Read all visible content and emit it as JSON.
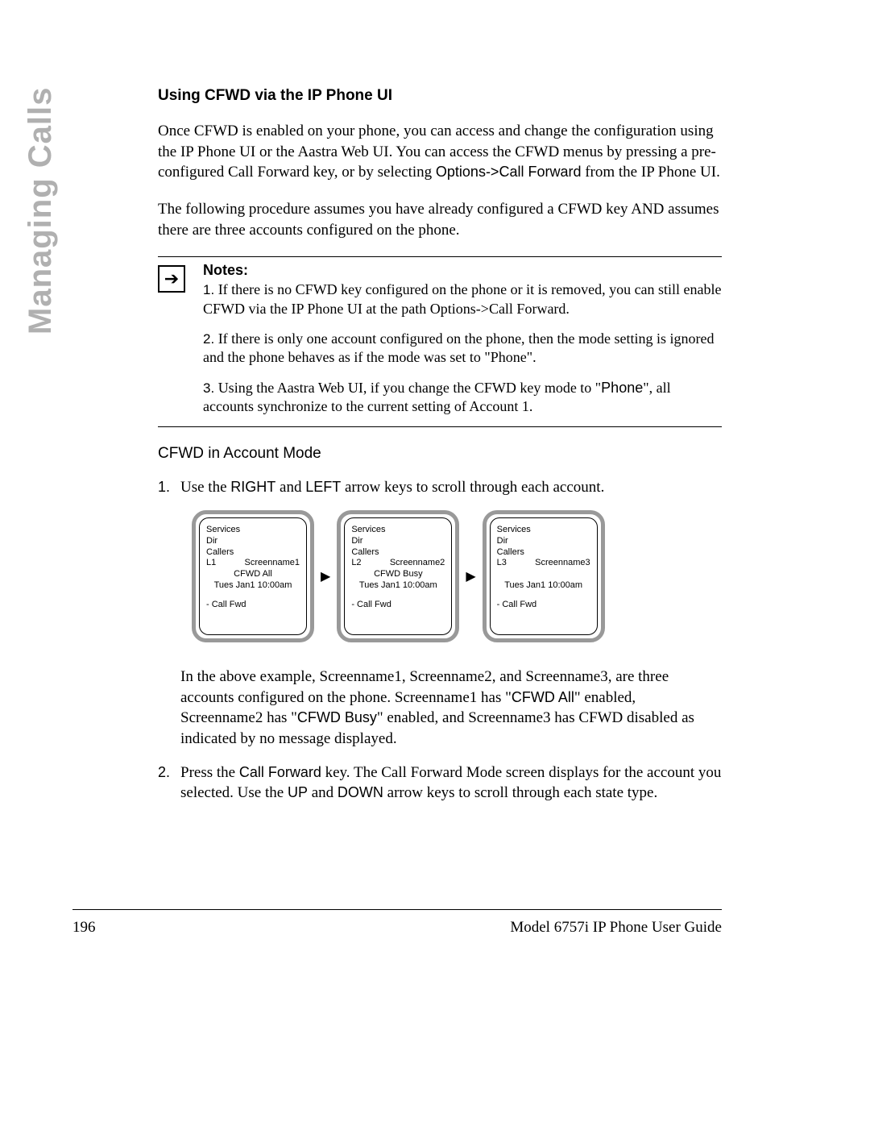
{
  "sideTab": "Managing Calls",
  "heading": "Using CFWD via the IP Phone UI",
  "para1_a": "Once CFWD is enabled on your phone, you can access and change the configuration using the IP Phone UI or the Aastra Web UI. You can access the CFWD menus by pressing a pre-configured Call Forward key, or by selecting ",
  "para1_b": "Options->Call Forward",
  "para1_c": " from the IP Phone UI.",
  "para2": "The following procedure assumes you have already configured a CFWD key AND assumes there are three accounts configured on the phone.",
  "notesTitle": "Notes:",
  "note1_num": "1.",
  "note1": " If there is no CFWD key configured on the phone or it is removed, you can still enable CFWD via the IP Phone UI at the path Options->Call Forward.",
  "note2_num": "2.",
  "note2": " If there is only one account configured on the phone, then the mode setting is ignored and the phone behaves as if the mode was set to \"Phone\".",
  "note3_num": "3.",
  "note3_a": " Using the Aastra Web UI, if you change the CFWD key mode to \"",
  "note3_b": "Phone",
  "note3_c": "\", all accounts synchronize to the current setting of Account 1.",
  "subhead": "CFWD in Account Mode",
  "step1_num": "1.",
  "step1_a": "Use the ",
  "step1_b": "RIGHT",
  "step1_c": " and ",
  "step1_d": "LEFT",
  "step1_e": " arrow keys to scroll through each account.",
  "screens": [
    {
      "services": "Services",
      "dir": "Dir",
      "callers": "Callers",
      "line": "L1",
      "screenname": "Screenname1",
      "cfwd": "CFWD All",
      "time": "Tues Jan1 10:00am",
      "callfwd": "- Call Fwd"
    },
    {
      "services": "Services",
      "dir": "Dir",
      "callers": "Callers",
      "line": "L2",
      "screenname": "Screenname2",
      "cfwd": "CFWD Busy",
      "time": "Tues Jan1 10:00am",
      "callfwd": "- Call Fwd"
    },
    {
      "services": "Services",
      "dir": "Dir",
      "callers": "Callers",
      "line": "L3",
      "screenname": "Screenname3",
      "cfwd": "",
      "time": "Tues Jan1 10:00am",
      "callfwd": "- Call Fwd"
    }
  ],
  "arrow": "▶",
  "afterScreens_a": "In the above example, Screenname1, Screenname2, and Screenname3, are three accounts configured on the phone. Screenname1 has \"",
  "afterScreens_b": "CFWD All",
  "afterScreens_c": "\" enabled, Screenname2 has \"",
  "afterScreens_d": "CFWD Busy",
  "afterScreens_e": "\" enabled, and Screenname3 has CFWD disabled as indicated by no message displayed.",
  "step2_num": "2.",
  "step2_a": "Press the ",
  "step2_b": "Call Forward",
  "step2_c": " key. The Call Forward Mode screen displays for the account you selected. Use the ",
  "step2_d": "UP",
  "step2_e": " and ",
  "step2_f": "DOWN",
  "step2_g": " arrow keys to scroll through each state type.",
  "pageNum": "196",
  "footerText": "Model 6757i IP Phone User Guide",
  "noteArrow": "➔"
}
